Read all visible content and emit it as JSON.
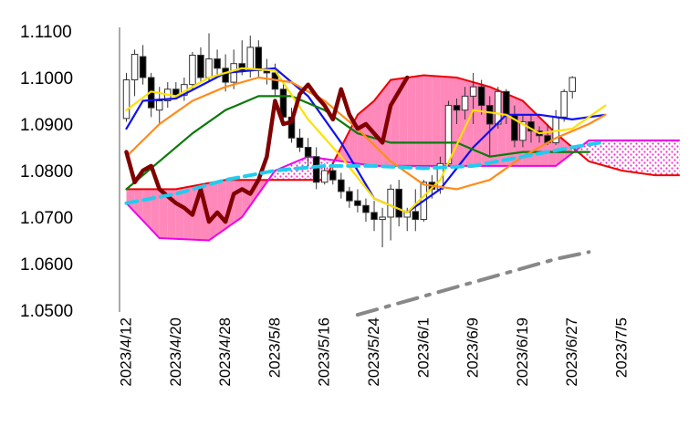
{
  "chart_data": {
    "type": "candlestick",
    "title": "",
    "xlabel": "",
    "ylabel": "",
    "ylim": [
      1.05,
      1.11
    ],
    "yticks": [
      "1.1100",
      "1.1000",
      "1.0900",
      "1.0800",
      "1.0700",
      "1.0600",
      "1.0500"
    ],
    "ytick_values": [
      1.11,
      1.1,
      1.09,
      1.08,
      1.07,
      1.06,
      1.05
    ],
    "xticks": [
      "2023/4/12",
      "2023/4/20",
      "2023/4/28",
      "2023/5/8",
      "2023/5/16",
      "2023/5/24",
      "2023/6/1",
      "2023/6/9",
      "2023/6/19",
      "2023/6/27",
      "2023/7/5"
    ],
    "xtick_index": [
      0,
      6,
      12,
      18,
      24,
      30,
      36,
      42,
      48,
      54,
      60
    ],
    "n_slots": 68,
    "candles": [
      [
        0,
        1.0912,
        1.101,
        1.0905,
        1.0995
      ],
      [
        1,
        1.0995,
        1.106,
        1.096,
        1.105
      ],
      [
        2,
        1.1045,
        1.107,
        1.0985,
        1.1
      ],
      [
        3,
        1.1,
        1.101,
        1.0915,
        1.0935
      ],
      [
        4,
        1.093,
        1.098,
        1.09,
        1.095
      ],
      [
        5,
        1.095,
        1.099,
        1.0935,
        1.0975
      ],
      [
        6,
        1.0975,
        1.099,
        1.0955,
        1.0962
      ],
      [
        7,
        1.0962,
        1.1,
        1.095,
        1.0985
      ],
      [
        8,
        1.0985,
        1.1055,
        1.0975,
        1.1048
      ],
      [
        9,
        1.1048,
        1.1065,
        1.099,
        1.1
      ],
      [
        10,
        1.1,
        1.1095,
        1.099,
        1.104
      ],
      [
        11,
        1.104,
        1.106,
        1.1,
        1.102
      ],
      [
        12,
        1.102,
        1.105,
        1.097,
        1.099
      ],
      [
        13,
        1.099,
        1.106,
        1.0975,
        1.103
      ],
      [
        14,
        1.103,
        1.108,
        1.1005,
        1.1015
      ],
      [
        15,
        1.1015,
        1.109,
        1.1,
        1.1065
      ],
      [
        16,
        1.1065,
        1.108,
        1.1,
        1.1015
      ],
      [
        17,
        1.1015,
        1.104,
        1.0985,
        1.101
      ],
      [
        18,
        1.101,
        1.103,
        1.096,
        1.0975
      ],
      [
        19,
        1.0975,
        1.099,
        1.09,
        1.0915
      ],
      [
        20,
        1.0915,
        1.0935,
        1.086,
        1.087
      ],
      [
        21,
        1.087,
        1.089,
        1.084,
        1.085
      ],
      [
        22,
        1.085,
        1.087,
        1.081,
        1.083
      ],
      [
        23,
        1.083,
        1.085,
        1.076,
        1.0775
      ],
      [
        24,
        1.0775,
        1.0815,
        1.077,
        1.08
      ],
      [
        25,
        1.08,
        1.081,
        1.077,
        1.078
      ],
      [
        26,
        1.078,
        1.0795,
        1.074,
        1.0755
      ],
      [
        27,
        1.0755,
        1.0765,
        1.072,
        1.0735
      ],
      [
        28,
        1.0735,
        1.076,
        1.071,
        1.0725
      ],
      [
        29,
        1.0725,
        1.074,
        1.069,
        1.071
      ],
      [
        30,
        1.071,
        1.0735,
        1.067,
        1.0695
      ],
      [
        31,
        1.0695,
        1.072,
        1.0635,
        1.07
      ],
      [
        32,
        1.07,
        1.077,
        1.065,
        1.076
      ],
      [
        33,
        1.076,
        1.078,
        1.068,
        1.07
      ],
      [
        34,
        1.07,
        1.072,
        1.067,
        1.0712
      ],
      [
        35,
        1.0712,
        1.076,
        1.067,
        1.0695
      ],
      [
        36,
        1.0695,
        1.078,
        1.069,
        1.0775
      ],
      [
        37,
        1.0775,
        1.079,
        1.074,
        1.076
      ],
      [
        38,
        1.076,
        1.083,
        1.075,
        1.0815
      ],
      [
        39,
        1.0815,
        1.095,
        1.081,
        1.094
      ],
      [
        40,
        1.094,
        1.0955,
        1.09,
        1.093
      ],
      [
        41,
        1.093,
        1.098,
        1.091,
        1.096
      ],
      [
        42,
        1.096,
        1.101,
        1.09,
        1.098
      ],
      [
        43,
        1.098,
        1.0995,
        1.092,
        1.094
      ],
      [
        44,
        1.094,
        1.096,
        1.083,
        1.09
      ],
      [
        45,
        1.09,
        1.098,
        1.089,
        1.097
      ],
      [
        46,
        1.097,
        1.0975,
        1.09,
        1.092
      ],
      [
        47,
        1.092,
        1.094,
        1.085,
        1.0865
      ],
      [
        48,
        1.0865,
        1.092,
        1.085,
        1.0905
      ],
      [
        49,
        1.0905,
        1.092,
        1.086,
        1.0885
      ],
      [
        50,
        1.0885,
        1.0895,
        1.086,
        1.0875
      ],
      [
        51,
        1.0875,
        1.09,
        1.0855,
        1.086
      ],
      [
        52,
        1.086,
        1.093,
        1.0855,
        1.0915
      ],
      [
        53,
        1.0915,
        1.0975,
        1.0905,
        1.097
      ],
      [
        54,
        1.097,
        1.1003,
        1.0955,
        1.1
      ]
    ],
    "series": [
      {
        "color": "#1010ee",
        "points": [
          [
            0,
            1.089
          ],
          [
            2,
            1.095
          ],
          [
            6,
            1.0955
          ],
          [
            12,
            1.101
          ],
          [
            18,
            1.102
          ],
          [
            22,
            1.096
          ],
          [
            26,
            1.086
          ],
          [
            30,
            1.074
          ],
          [
            34,
            1.071
          ],
          [
            38,
            1.076
          ],
          [
            42,
            1.085
          ],
          [
            46,
            1.092
          ],
          [
            50,
            1.092
          ],
          [
            54,
            1.091
          ],
          [
            58,
            1.092
          ]
        ]
      },
      {
        "color": "#0a7a0a",
        "points": [
          [
            0,
            1.076
          ],
          [
            4,
            1.082
          ],
          [
            8,
            1.088
          ],
          [
            12,
            1.093
          ],
          [
            16,
            1.096
          ],
          [
            20,
            1.096
          ],
          [
            24,
            1.093
          ],
          [
            28,
            1.088
          ],
          [
            32,
            1.086
          ],
          [
            36,
            1.086
          ],
          [
            40,
            1.086
          ],
          [
            44,
            1.083
          ],
          [
            48,
            1.084
          ],
          [
            52,
            1.084
          ],
          [
            56,
            1.084
          ]
        ]
      },
      {
        "color": "#ffe000",
        "points": [
          [
            0,
            1.093
          ],
          [
            3,
            1.097
          ],
          [
            6,
            1.096
          ],
          [
            10,
            1.1
          ],
          [
            14,
            1.102
          ],
          [
            18,
            1.1015
          ],
          [
            22,
            1.091
          ],
          [
            26,
            1.083
          ],
          [
            30,
            1.074
          ],
          [
            34,
            1.071
          ],
          [
            38,
            1.078
          ],
          [
            42,
            1.093
          ],
          [
            46,
            1.092
          ],
          [
            50,
            1.088
          ],
          [
            54,
            1.089
          ],
          [
            58,
            1.094
          ]
        ]
      },
      {
        "color": "#ff8c1a",
        "points": [
          [
            0,
            1.083
          ],
          [
            4,
            1.09
          ],
          [
            8,
            1.095
          ],
          [
            12,
            1.098
          ],
          [
            16,
            1.1
          ],
          [
            20,
            1.099
          ],
          [
            24,
            1.095
          ],
          [
            28,
            1.089
          ],
          [
            32,
            1.082
          ],
          [
            36,
            1.077
          ],
          [
            40,
            1.076
          ],
          [
            44,
            1.078
          ],
          [
            48,
            1.083
          ],
          [
            52,
            1.087
          ],
          [
            56,
            1.09
          ],
          [
            58,
            1.092
          ]
        ]
      },
      {
        "color": "#800000",
        "points": [
          [
            0,
            1.084
          ],
          [
            1,
            1.0775
          ],
          [
            2,
            1.08
          ],
          [
            3,
            1.081
          ],
          [
            4,
            1.076
          ],
          [
            5,
            1.0745
          ],
          [
            6,
            1.073
          ],
          [
            7,
            1.072
          ],
          [
            8,
            1.0705
          ],
          [
            9,
            1.076
          ],
          [
            10,
            1.069
          ],
          [
            11,
            1.071
          ],
          [
            12,
            1.069
          ],
          [
            13,
            1.075
          ],
          [
            14,
            1.076
          ],
          [
            15,
            1.075
          ],
          [
            16,
            1.078
          ],
          [
            17,
            1.083
          ],
          [
            18,
            1.095
          ],
          [
            19,
            1.09
          ],
          [
            20,
            1.0905
          ],
          [
            21,
            1.0965
          ],
          [
            22,
            1.0985
          ],
          [
            23,
            1.096
          ],
          [
            24,
            1.094
          ],
          [
            25,
            1.091
          ],
          [
            26,
            1.0975
          ],
          [
            27,
            1.092
          ],
          [
            28,
            1.089
          ],
          [
            29,
            1.09
          ],
          [
            30,
            1.088
          ],
          [
            31,
            1.086
          ],
          [
            32,
            1.094
          ],
          [
            33,
            1.097
          ],
          [
            34,
            1.1
          ]
        ]
      },
      {
        "color": "#22ccee",
        "dashed": true,
        "points": [
          [
            0,
            1.073
          ],
          [
            6,
            1.075
          ],
          [
            12,
            1.078
          ],
          [
            18,
            1.08
          ],
          [
            24,
            1.081
          ],
          [
            30,
            1.081
          ],
          [
            36,
            1.0805
          ],
          [
            42,
            1.081
          ],
          [
            48,
            1.083
          ],
          [
            54,
            1.085
          ],
          [
            58,
            1.0862
          ]
        ]
      },
      {
        "color": "#888888",
        "dashed": true,
        "points": [
          [
            28,
            1.049
          ],
          [
            34,
            1.052
          ],
          [
            40,
            1.055
          ],
          [
            46,
            1.058
          ],
          [
            52,
            1.061
          ],
          [
            56,
            1.0625
          ]
        ]
      }
    ],
    "cloud": {
      "span_a": [
        [
          0,
          1.076
        ],
        [
          6,
          1.076
        ],
        [
          12,
          1.078
        ],
        [
          18,
          1.078
        ],
        [
          24,
          1.078
        ],
        [
          28,
          1.092
        ],
        [
          30,
          1.095
        ],
        [
          32,
          1.0995
        ],
        [
          36,
          1.1005
        ],
        [
          40,
          1.1
        ],
        [
          44,
          1.098
        ],
        [
          48,
          1.095
        ],
        [
          52,
          1.088
        ],
        [
          56,
          1.082
        ],
        [
          60,
          1.08
        ],
        [
          64,
          1.079
        ],
        [
          67,
          1.079
        ]
      ],
      "span_b": [
        [
          0,
          1.073
        ],
        [
          4,
          1.0655
        ],
        [
          10,
          1.065
        ],
        [
          14,
          1.07
        ],
        [
          18,
          1.08
        ],
        [
          22,
          1.083
        ],
        [
          26,
          1.082
        ],
        [
          30,
          1.081
        ],
        [
          36,
          1.081
        ],
        [
          42,
          1.081
        ],
        [
          48,
          1.081
        ],
        [
          52,
          1.081
        ],
        [
          56,
          1.0865
        ],
        [
          60,
          1.0865
        ],
        [
          64,
          1.0865
        ],
        [
          67,
          1.0865
        ]
      ],
      "bull_color": "#ff88bb",
      "bear_color": "#ff66cc"
    }
  }
}
